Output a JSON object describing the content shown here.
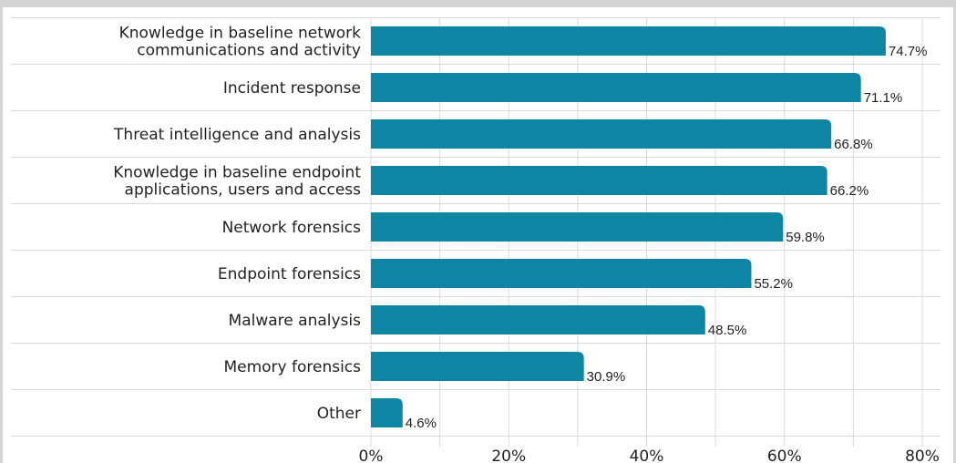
{
  "chart_data": {
    "type": "bar",
    "orientation": "horizontal",
    "categories": [
      "Knowledge in baseline network communications and activity",
      "Incident response",
      "Threat intelligence and analysis",
      "Knowledge in baseline endpoint applications, users and access",
      "Network forensics",
      "Endpoint forensics",
      "Malware analysis",
      "Memory forensics",
      "Other"
    ],
    "category_lines": [
      [
        "Knowledge in baseline network",
        "communications and activity"
      ],
      [
        "Incident response"
      ],
      [
        "Threat intelligence and analysis"
      ],
      [
        "Knowledge in baseline endpoint",
        "applications, users and access"
      ],
      [
        "Network forensics"
      ],
      [
        "Endpoint forensics"
      ],
      [
        "Malware analysis"
      ],
      [
        "Memory forensics"
      ],
      [
        "Other"
      ]
    ],
    "values": [
      74.7,
      71.1,
      66.8,
      66.2,
      59.8,
      55.2,
      48.5,
      30.9,
      4.6
    ],
    "value_labels": [
      "74.7%",
      "71.1%",
      "66.8%",
      "66.2%",
      "59.8%",
      "55.2%",
      "48.5%",
      "30.9%",
      "4.6%"
    ],
    "xlim": [
      0,
      80
    ],
    "x_ticks": [
      0,
      20,
      40,
      60,
      80
    ],
    "x_tick_labels": [
      "0%",
      "20%",
      "40%",
      "60%",
      "80%"
    ],
    "grid": true,
    "legend": "none",
    "bar_color": "#0e86a3",
    "grid_color": "#d9d9d9",
    "frame_color": "#d4d4d4"
  }
}
